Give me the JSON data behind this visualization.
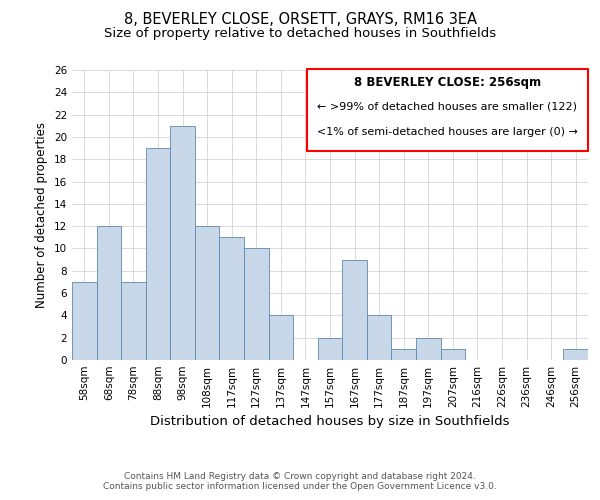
{
  "title": "8, BEVERLEY CLOSE, ORSETT, GRAYS, RM16 3EA",
  "subtitle": "Size of property relative to detached houses in Southfields",
  "xlabel": "Distribution of detached houses by size in Southfields",
  "ylabel": "Number of detached properties",
  "bar_color": "#c8d8e8",
  "bar_edge_color": "#5a8ab0",
  "categories": [
    "58sqm",
    "68sqm",
    "78sqm",
    "88sqm",
    "98sqm",
    "108sqm",
    "117sqm",
    "127sqm",
    "137sqm",
    "147sqm",
    "157sqm",
    "167sqm",
    "177sqm",
    "187sqm",
    "197sqm",
    "207sqm",
    "216sqm",
    "226sqm",
    "236sqm",
    "246sqm",
    "256sqm"
  ],
  "values": [
    7,
    12,
    7,
    19,
    21,
    12,
    11,
    10,
    4,
    0,
    2,
    9,
    4,
    1,
    2,
    1,
    0,
    0,
    0,
    0,
    1
  ],
  "ylim": [
    0,
    26
  ],
  "yticks": [
    0,
    2,
    4,
    6,
    8,
    10,
    12,
    14,
    16,
    18,
    20,
    22,
    24,
    26
  ],
  "annotation_text_line1": "8 BEVERLEY CLOSE: 256sqm",
  "annotation_text_line2": "← >99% of detached houses are smaller (122)",
  "annotation_text_line3": "<1% of semi-detached houses are larger (0) →",
  "footer_line1": "Contains HM Land Registry data © Crown copyright and database right 2024.",
  "footer_line2": "Contains public sector information licensed under the Open Government Licence v3.0.",
  "grid_color": "#cccccc",
  "title_fontsize": 10.5,
  "subtitle_fontsize": 9.5,
  "xlabel_fontsize": 9.5,
  "ylabel_fontsize": 8.5,
  "tick_fontsize": 7.5,
  "annotation_fontsize": 8.5,
  "footer_fontsize": 6.5
}
